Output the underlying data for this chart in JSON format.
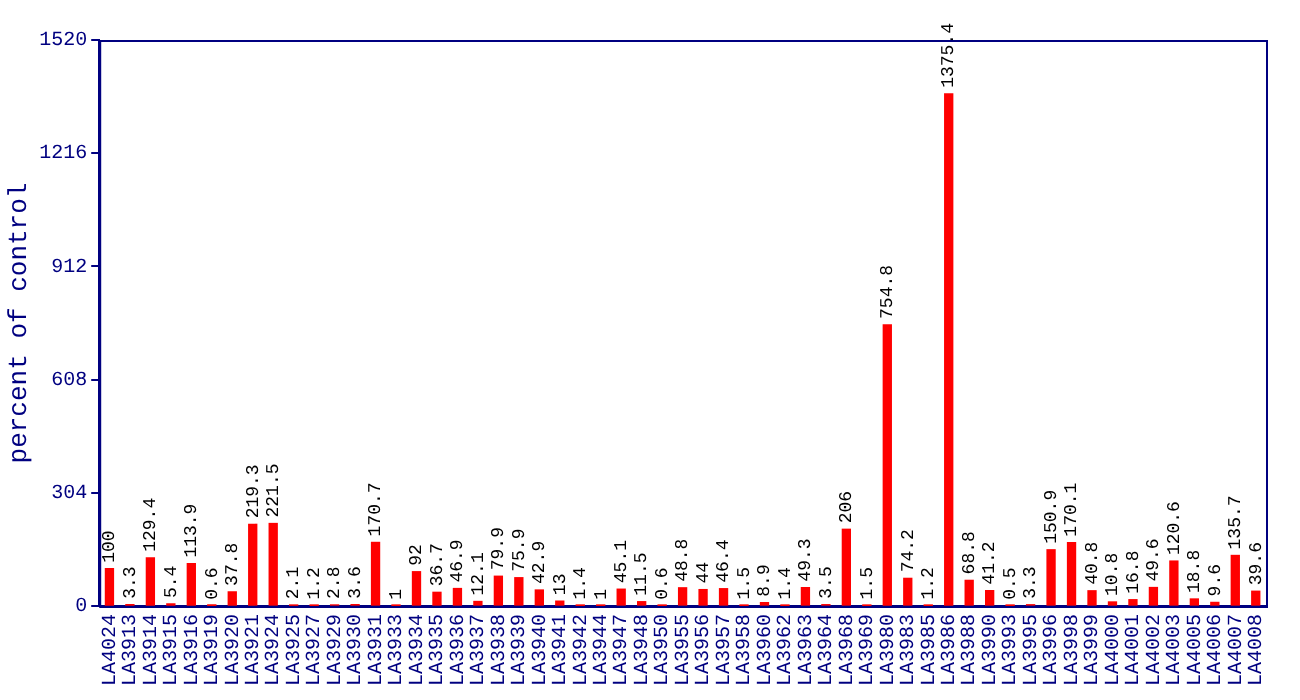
{
  "chart_data": {
    "type": "bar",
    "ylabel": "percent of control",
    "categories": [
      "LA4024",
      "LA3913",
      "LA3914",
      "LA3915",
      "LA3916",
      "LA3919",
      "LA3920",
      "LA3921",
      "LA3924",
      "LA3925",
      "LA3927",
      "LA3929",
      "LA3930",
      "LA3931",
      "LA3933",
      "LA3934",
      "LA3935",
      "LA3936",
      "LA3937",
      "LA3938",
      "LA3939",
      "LA3940",
      "LA3941",
      "LA3942",
      "LA3944",
      "LA3947",
      "LA3948",
      "LA3950",
      "LA3955",
      "LA3956",
      "LA3957",
      "LA3958",
      "LA3960",
      "LA3962",
      "LA3963",
      "LA3964",
      "LA3968",
      "LA3969",
      "LA3980",
      "LA3983",
      "LA3985",
      "LA3986",
      "LA3988",
      "LA3990",
      "LA3993",
      "LA3995",
      "LA3996",
      "LA3998",
      "LA3999",
      "LA4000",
      "LA4001",
      "LA4002",
      "LA4003",
      "LA4005",
      "LA4006",
      "LA4007",
      "LA4008"
    ],
    "values": [
      100,
      3.3,
      129.4,
      5.4,
      113.9,
      0.6,
      37.8,
      219.3,
      221.5,
      2.1,
      1.2,
      2.8,
      3.6,
      170.7,
      1,
      92,
      36.7,
      46.9,
      12.1,
      79.9,
      75.9,
      42.9,
      13,
      1.4,
      1,
      45.1,
      11.5,
      0.6,
      48.8,
      44,
      46.4,
      1.5,
      8.9,
      1.4,
      49.3,
      3.5,
      206,
      1.5,
      754.8,
      74.2,
      1.2,
      1375.4,
      68.8,
      41.2,
      0.5,
      3.3,
      150.9,
      170.1,
      40.8,
      10.8,
      16.8,
      49.6,
      120.6,
      18.8,
      9.6,
      135.7,
      39.6
    ],
    "color": "#ff0000",
    "ylim": [
      0,
      1520
    ],
    "yticks": [
      0,
      304,
      608,
      912,
      1216,
      1520
    ],
    "grid": false,
    "legend": false,
    "data_labels": true
  }
}
